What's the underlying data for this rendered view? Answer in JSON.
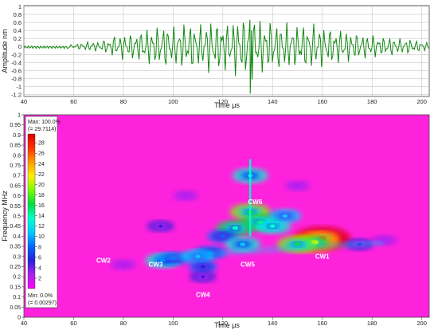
{
  "chart_data": [
    {
      "type": "line",
      "xlabel": "Time μs",
      "ylabel": "Amplitude nm",
      "xlim": [
        40,
        203
      ],
      "ylim": [
        -1.25,
        1.02
      ],
      "x_ticks": [
        "40",
        "60",
        "80",
        "100",
        "120",
        "140",
        "160",
        "180",
        "200"
      ],
      "y_ticks": [
        "1",
        "0.8",
        "0.6",
        "0.4",
        "0.2",
        "0",
        "-0.2",
        "-0.4",
        "-0.6",
        "-0.8",
        "-1",
        "-1.2"
      ],
      "grid": true,
      "line_color": "#118811",
      "series": [
        {
          "x": [
            40,
            45,
            50,
            55,
            58,
            60,
            62,
            64,
            66,
            68,
            70,
            72,
            74,
            76,
            78,
            80,
            82,
            84,
            86,
            88,
            90,
            92,
            94,
            96,
            98,
            100,
            102,
            104,
            106,
            108,
            110,
            112,
            114,
            116,
            118,
            120,
            122,
            124,
            126,
            128,
            130,
            131,
            132,
            134,
            136,
            138,
            140,
            142,
            144,
            146,
            148,
            150,
            152,
            154,
            156,
            158,
            160,
            162,
            164,
            166,
            168,
            170,
            172,
            174,
            176,
            178,
            180,
            182,
            184,
            186,
            188,
            190,
            192,
            194,
            196,
            198,
            200,
            202
          ],
          "y": [
            -0.02,
            -0.02,
            -0.03,
            -0.02,
            -0.04,
            0.05,
            -0.08,
            0.1,
            -0.12,
            0.15,
            -0.1,
            0.2,
            -0.15,
            0.3,
            -0.25,
            0.35,
            -0.3,
            0.4,
            -0.35,
            0.5,
            -0.45,
            0.55,
            -0.5,
            0.6,
            -0.55,
            0.5,
            -0.55,
            0.6,
            -0.6,
            0.65,
            -0.55,
            0.6,
            -0.7,
            0.7,
            -0.65,
            0.75,
            -0.6,
            0.7,
            -0.8,
            0.75,
            -0.9,
            -1.18,
            0.85,
            -0.7,
            0.7,
            -0.65,
            0.7,
            -0.6,
            0.65,
            -0.6,
            0.6,
            -0.55,
            0.6,
            -0.6,
            0.6,
            -0.55,
            0.55,
            -0.5,
            0.5,
            -0.45,
            0.45,
            -0.4,
            0.4,
            -0.35,
            0.35,
            -0.3,
            0.3,
            -0.3,
            0.25,
            -0.25,
            0.25,
            -0.2,
            0.2,
            -0.2,
            0.2,
            -0.15,
            0.15,
            -0.1
          ]
        }
      ]
    },
    {
      "type": "heatmap",
      "xlabel": "Time μs",
      "ylabel": "Frequency MHz",
      "xlim": [
        40,
        203
      ],
      "ylim": [
        0,
        1
      ],
      "x_ticks": [
        "40",
        "60",
        "80",
        "100",
        "120",
        "140",
        "160",
        "180",
        "200"
      ],
      "y_ticks": [
        "1",
        "0.95",
        "0.9",
        "0.85",
        "0.8",
        "0.75",
        "0.7",
        "0.65",
        "0.6",
        "0.55",
        "0.5",
        "0.45",
        "0.4",
        "0.35",
        "0.3",
        "0.25",
        "0.2",
        "0.15",
        "0.1",
        "0.05",
        "0"
      ],
      "colorbar": {
        "max_label": "Max: 100.0%",
        "max_value": "(= 29.7114)",
        "min_label": "Min: 0.0%",
        "min_value": "(= 0.00297)",
        "ticks": [
          "28",
          "26",
          "24",
          "22",
          "20",
          "18",
          "16",
          "14",
          "12",
          "10",
          "8",
          "6",
          "4",
          "2"
        ],
        "range": [
          0,
          29.7114
        ],
        "colors": [
          "#ff00ff",
          "#aa22ee",
          "#2222dd",
          "#0066ff",
          "#00ccff",
          "#00ffcc",
          "#00dd44",
          "#77ff00",
          "#ffee00",
          "#ff9900",
          "#ff3300",
          "#dd0000"
        ]
      },
      "background_color": "#ff22dd",
      "blobs": [
        {
          "t": 160,
          "f": 0.39,
          "v": 29
        },
        {
          "t": 157,
          "f": 0.37,
          "v": 22
        },
        {
          "t": 150,
          "f": 0.36,
          "v": 16
        },
        {
          "t": 131,
          "f": 0.52,
          "v": 16
        },
        {
          "t": 131,
          "f": 0.7,
          "v": 12
        },
        {
          "t": 135,
          "f": 0.47,
          "v": 15
        },
        {
          "t": 140,
          "f": 0.45,
          "v": 13
        },
        {
          "t": 125,
          "f": 0.44,
          "v": 14
        },
        {
          "t": 120,
          "f": 0.4,
          "v": 9
        },
        {
          "t": 145,
          "f": 0.5,
          "v": 10
        },
        {
          "t": 128,
          "f": 0.36,
          "v": 12
        },
        {
          "t": 115,
          "f": 0.32,
          "v": 9
        },
        {
          "t": 96,
          "f": 0.28,
          "v": 12
        },
        {
          "t": 100,
          "f": 0.29,
          "v": 9
        },
        {
          "t": 110,
          "f": 0.3,
          "v": 10
        },
        {
          "t": 112,
          "f": 0.25,
          "v": 7
        },
        {
          "t": 112,
          "f": 0.2,
          "v": 5
        },
        {
          "t": 175,
          "f": 0.36,
          "v": 6
        },
        {
          "t": 185,
          "f": 0.38,
          "v": 4
        },
        {
          "t": 95,
          "f": 0.45,
          "v": 5
        },
        {
          "t": 105,
          "f": 0.6,
          "v": 4
        },
        {
          "t": 150,
          "f": 0.65,
          "v": 4
        },
        {
          "t": 80,
          "f": 0.26,
          "v": 4
        }
      ],
      "annotations": [
        {
          "text": "CW1",
          "t": 160,
          "f": 0.29
        },
        {
          "text": "CW2",
          "t": 72,
          "f": 0.27
        },
        {
          "text": "CW3",
          "t": 93,
          "f": 0.25
        },
        {
          "text": "CW4",
          "t": 112,
          "f": 0.1
        },
        {
          "text": "CW5",
          "t": 130,
          "f": 0.25
        },
        {
          "text": "CW6",
          "t": 133,
          "f": 0.56
        }
      ]
    }
  ]
}
